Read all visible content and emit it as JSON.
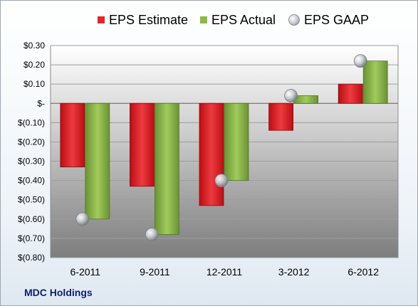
{
  "chart_data": {
    "type": "bar",
    "categories": [
      "6-2011",
      "9-2011",
      "12-2011",
      "3-2012",
      "6-2012"
    ],
    "series": [
      {
        "name": "EPS Estimate",
        "type": "bar",
        "color": "#e0262c",
        "values": [
          -0.33,
          -0.43,
          -0.53,
          -0.14,
          0.1
        ]
      },
      {
        "name": "EPS Actual",
        "type": "bar",
        "color": "#8cb848",
        "values": [
          -0.6,
          -0.68,
          -0.4,
          0.04,
          0.22
        ]
      },
      {
        "name": "EPS GAAP",
        "type": "scatter",
        "color": "#c0c4c9",
        "values": [
          -0.6,
          -0.68,
          -0.4,
          0.04,
          0.22
        ]
      }
    ],
    "ylim": [
      -0.8,
      0.3
    ],
    "yticks": [
      0.3,
      0.2,
      0.1,
      0.0,
      -0.1,
      -0.2,
      -0.3,
      -0.4,
      -0.5,
      -0.6,
      -0.7,
      -0.8
    ],
    "ytick_labels": [
      "$0.30",
      "$0.20",
      "$0.10",
      "$-",
      "$(0.10)",
      "$(0.20)",
      "$(0.30)",
      "$(0.40)",
      "$(0.50)",
      "$(0.60)",
      "$(0.70)",
      "$(0.80)"
    ],
    "legend_position": "top",
    "grid": true
  },
  "company_label": "MDC Holdings"
}
